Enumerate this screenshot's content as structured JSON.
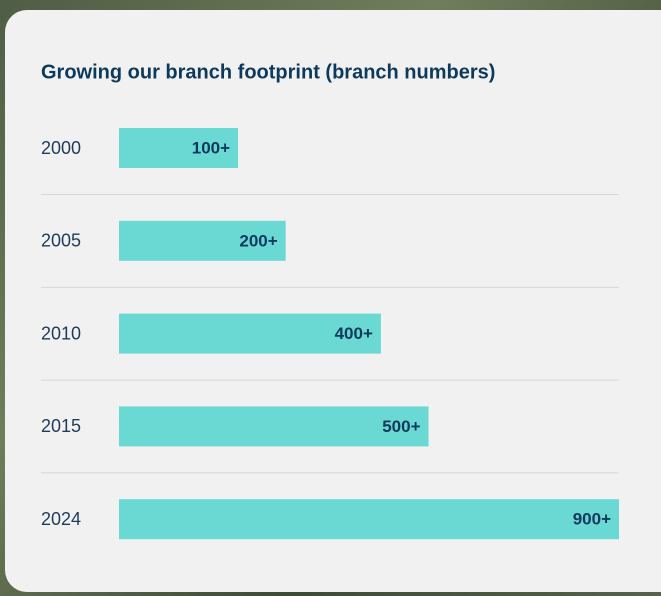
{
  "chart_data": {
    "type": "bar",
    "orientation": "horizontal",
    "title": "Growing our branch footprint (branch numbers)",
    "categories": [
      "2000",
      "2005",
      "2010",
      "2015",
      "2024"
    ],
    "values": [
      100,
      200,
      400,
      500,
      900
    ],
    "value_labels": [
      "100+",
      "200+",
      "400+",
      "500+",
      "900+"
    ],
    "color": "#6ad9d3",
    "xlim": [
      -150,
      900
    ]
  }
}
